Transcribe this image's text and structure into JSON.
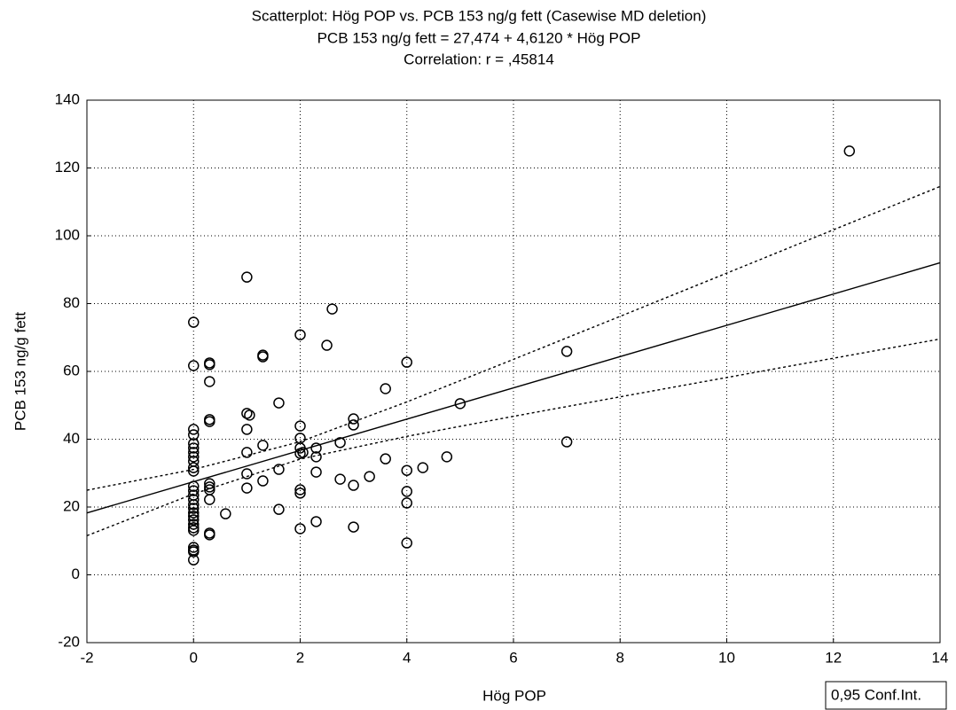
{
  "chart_data": {
    "type": "scatter",
    "title": "Scatterplot: Hög POP vs. PCB 153 ng/g fett (Casewise MD deletion)",
    "subtitle": "PCB 153 ng/g fett = 27,474 + 4,6120 * Hög POP",
    "annotation": "Correlation: r = ,45814",
    "x_label": "Hög POP",
    "y_label": "PCB 153 ng/g fett",
    "xlim": [
      -2,
      14
    ],
    "ylim": [
      -20,
      140
    ],
    "xticks": [
      -2,
      0,
      2,
      4,
      6,
      8,
      10,
      12,
      14
    ],
    "yticks": [
      -20,
      0,
      20,
      40,
      60,
      80,
      100,
      120,
      140
    ],
    "grid": true,
    "points": {
      "color": "#000000",
      "x": [
        0,
        0,
        0,
        0,
        0,
        0,
        0,
        0,
        0,
        0,
        0,
        0,
        0,
        0,
        0,
        0,
        0,
        0,
        0,
        0,
        0,
        0,
        0,
        0,
        0,
        0,
        0,
        0.3,
        0.3,
        0.3,
        0.3,
        0.3,
        0.3,
        0.3,
        0.3,
        0.3,
        0.3,
        0.3,
        0.6,
        1,
        1,
        1,
        1,
        1,
        1,
        1.05,
        1.3,
        1.3,
        1.3,
        1.3,
        1.6,
        1.6,
        1.6,
        2,
        2,
        2,
        2,
        2,
        2,
        2,
        2,
        2.05,
        2.3,
        2.3,
        2.3,
        2.3,
        2.5,
        2.6,
        2.75,
        2.75,
        3,
        3,
        3,
        3,
        3.3,
        3.6,
        3.6,
        4,
        4,
        4,
        4,
        4,
        4.3,
        4.75,
        5,
        7,
        7,
        12.3
      ],
      "y": [
        74.5,
        61.7,
        42.9,
        41.3,
        38.7,
        37.4,
        36.1,
        34.8,
        33.5,
        31.6,
        30.6,
        26.1,
        24.8,
        23.5,
        22.2,
        20.7,
        19.6,
        18.3,
        17.3,
        16.2,
        14.9,
        13.9,
        13.1,
        8.1,
        7.3,
        6.8,
        4.4,
        62.5,
        62.0,
        57.0,
        45.8,
        45.2,
        26.9,
        25.9,
        25.1,
        22.2,
        12.3,
        11.8,
        18.0,
        87.8,
        47.6,
        42.9,
        36.1,
        29.8,
        25.6,
        47.1,
        64.8,
        64.3,
        38.2,
        27.7,
        50.7,
        31.1,
        19.3,
        70.8,
        43.9,
        40.3,
        37.4,
        35.8,
        25.1,
        24.1,
        13.6,
        36.1,
        37.4,
        34.8,
        30.3,
        15.7,
        67.7,
        78.4,
        39.0,
        28.2,
        46.0,
        44.2,
        26.4,
        14.1,
        29.0,
        54.9,
        34.2,
        62.7,
        30.8,
        24.6,
        21.2,
        9.4,
        31.6,
        34.8,
        50.5,
        65.9,
        39.2,
        125.0
      ]
    },
    "fit": {
      "color": "#000000",
      "x": [
        -2,
        14
      ],
      "y": [
        18.25,
        92.04
      ]
    },
    "confidence": {
      "label": "0,95 Conf.Int.",
      "color": "#000000",
      "x": [
        -2,
        0,
        2,
        4,
        6,
        8,
        10,
        12,
        14
      ],
      "upper": [
        24.96,
        31.08,
        39.27,
        51.0,
        63.55,
        76.24,
        88.98,
        101.76,
        114.53
      ],
      "lower": [
        11.54,
        23.87,
        34.13,
        40.84,
        46.75,
        52.5,
        58.2,
        63.88,
        69.55
      ]
    }
  }
}
